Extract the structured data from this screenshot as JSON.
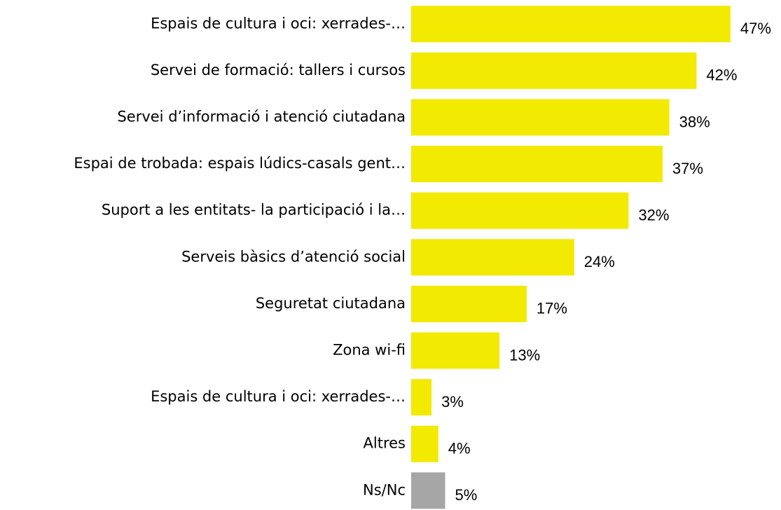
{
  "chart_data": {
    "type": "barh",
    "categories": [
      "Espais de cultura i oci: xerrades-…",
      "Servei de formació: tallers i cursos",
      "Servei d’informació i atenció ciutadana",
      "Espai de trobada: espais lúdics-casals gent…",
      "Suport a les entitats- la participació i la…",
      "Serveis bàsics d’atenció social",
      "Seguretat ciutadana",
      "Zona wi-fi",
      "Espais de cultura i oci: xerrades-…",
      "Altres",
      "Ns/Nc"
    ],
    "values": [
      47,
      42,
      38,
      37,
      32,
      24,
      17,
      13,
      3,
      4,
      5
    ],
    "value_labels": [
      "47%",
      "42%",
      "38%",
      "37%",
      "32%",
      "24%",
      "17%",
      "13%",
      "3%",
      "4%",
      "5%"
    ],
    "colors": [
      "#f2ea00",
      "#f2ea00",
      "#f2ea00",
      "#f2ea00",
      "#f2ea00",
      "#f2ea00",
      "#f2ea00",
      "#f2ea00",
      "#f2ea00",
      "#f2ea00",
      "#a6a6a6"
    ],
    "xlim": [
      0,
      50
    ]
  }
}
